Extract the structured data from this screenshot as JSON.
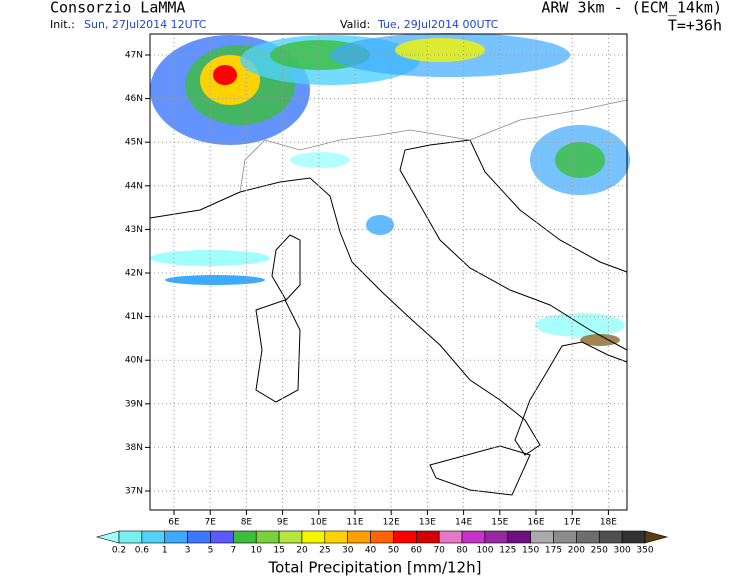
{
  "header": {
    "left_title": "Consorzio LaMMA",
    "right_title": "ARW 3km - (ECM_14km)",
    "init_label": "Init.:",
    "init_value": "Sun, 27Jul2014 12UTC",
    "valid_label": "Valid:",
    "valid_value": "Tue, 29Jul2014 00UTC",
    "forecast_step": "T=+36h"
  },
  "map": {
    "lat_labels": [
      "47N",
      "46N",
      "45N",
      "44N",
      "43N",
      "42N",
      "41N",
      "40N",
      "39N",
      "38N",
      "37N"
    ],
    "lon_labels": [
      "6E",
      "7E",
      "8E",
      "9E",
      "10E",
      "11E",
      "12E",
      "13E",
      "14E",
      "15E",
      "16E",
      "17E",
      "18E"
    ]
  },
  "colorbar": {
    "title": "Total Precipitation [mm/12h]",
    "labels": [
      "0.2",
      "0.6",
      "1",
      "3",
      "5",
      "7",
      "10",
      "15",
      "20",
      "25",
      "30",
      "40",
      "50",
      "60",
      "70",
      "80",
      "100",
      "125",
      "150",
      "175",
      "200",
      "250",
      "300",
      "350"
    ],
    "colors": [
      "#a0fffa",
      "#78f0f0",
      "#50d2fa",
      "#3caaff",
      "#3c78ff",
      "#5a5aff",
      "#3cbe3c",
      "#78d23c",
      "#b4e63c",
      "#f5f500",
      "#ffd200",
      "#ffa000",
      "#ff6400",
      "#ff0000",
      "#d20000",
      "#e678c8",
      "#c832c8",
      "#9628a0",
      "#6e0f82",
      "#aaaaaa",
      "#8c8c8c",
      "#6e6e6e",
      "#505050",
      "#323232",
      "#8c6428",
      "#5a3c0f"
    ]
  }
}
